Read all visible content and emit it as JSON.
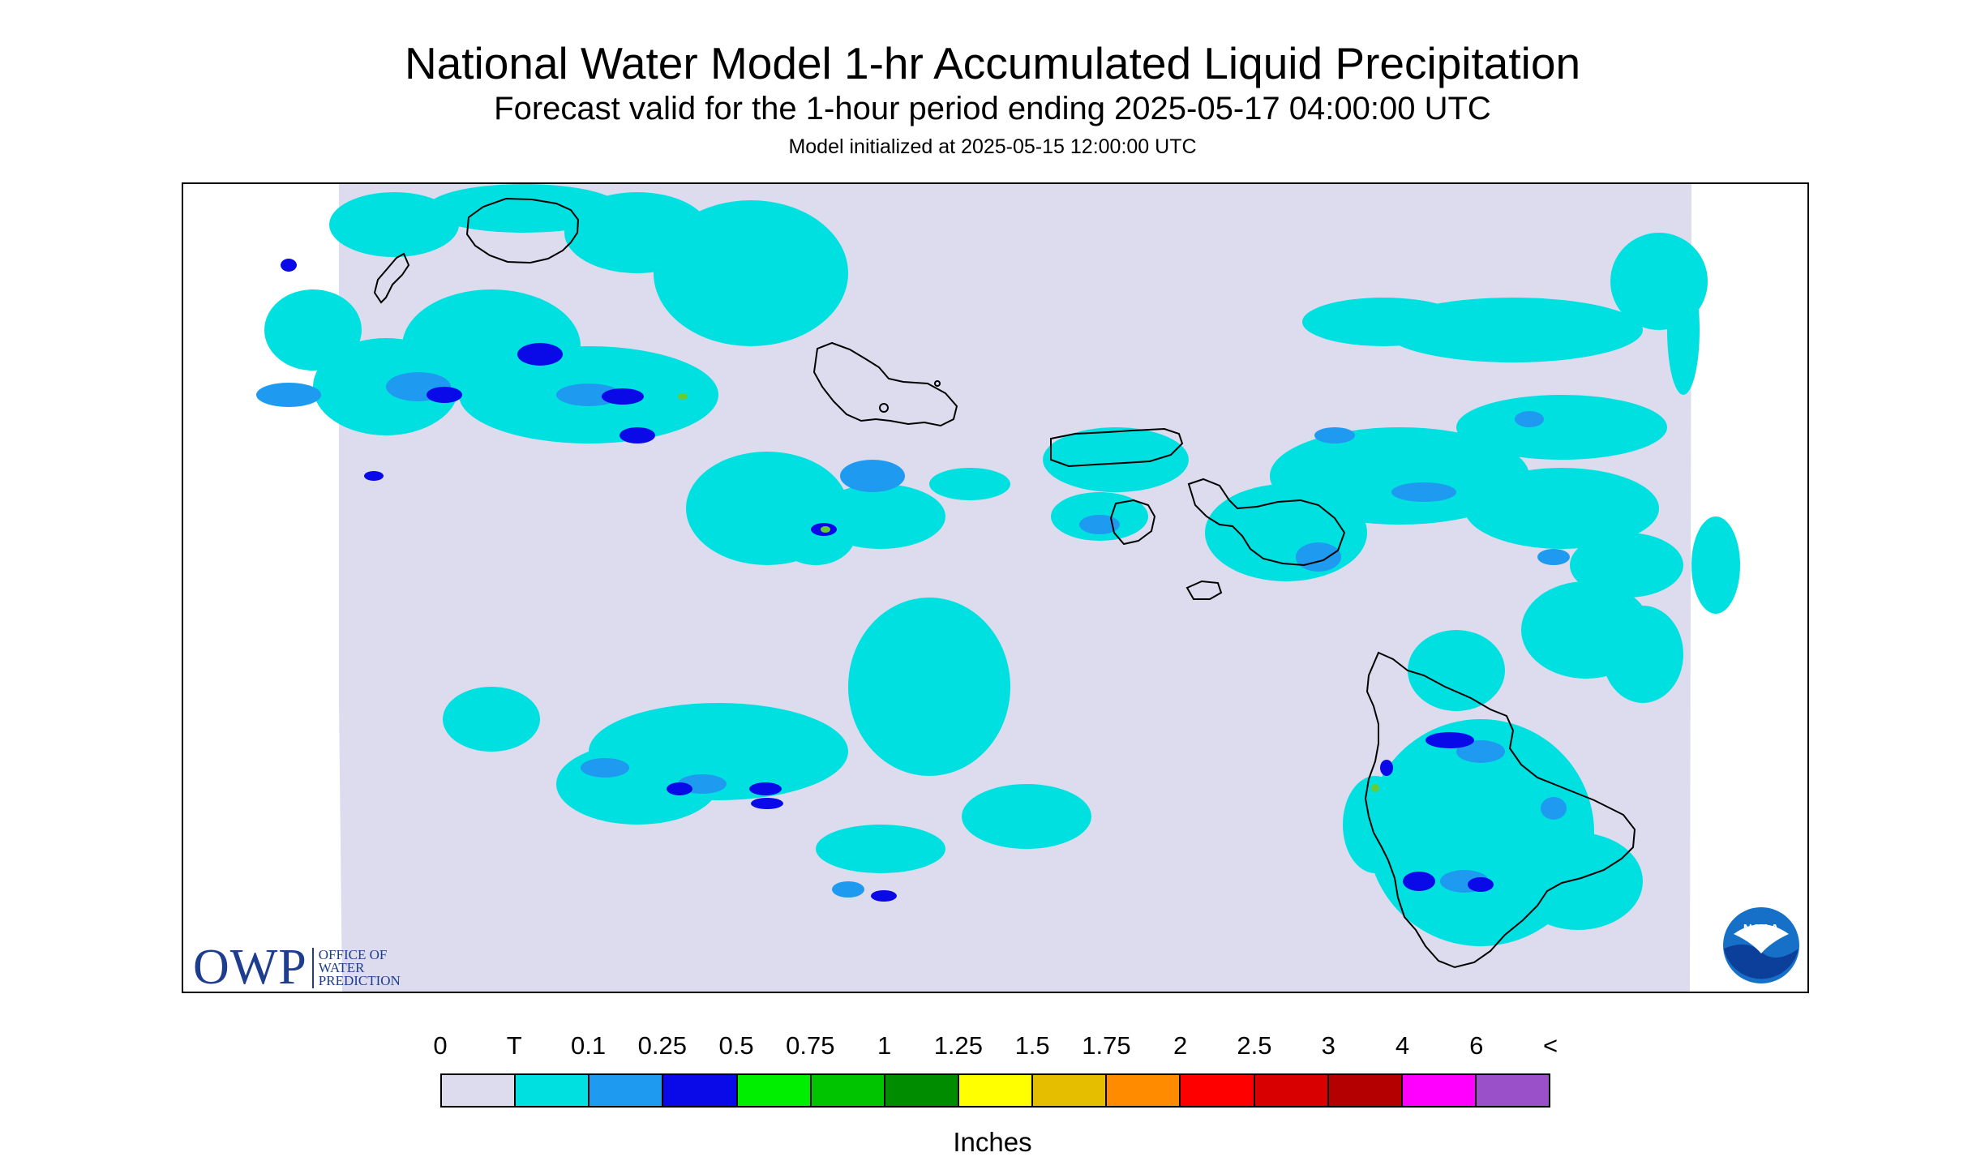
{
  "title": "National Water Model 1-hr Accumulated Liquid Precipitation",
  "subtitle": "Forecast valid for the 1-hour period ending 2025-05-17 04:00:00 UTC",
  "init_line": "Model initialized at 2025-05-15 12:00:00 UTC",
  "owp_logo": {
    "mark": "OWP",
    "line1": "OFFICE OF",
    "line2": "WATER",
    "line3": "PREDICTION",
    "color": "#1f3d8f"
  },
  "noaa_logo": {
    "text": "NOAA",
    "icon": "noaa-seal-icon"
  },
  "legend": {
    "labels": [
      "0",
      "T",
      "0.1",
      "0.25",
      "0.5",
      "0.75",
      "1",
      "1.25",
      "1.5",
      "1.75",
      "2",
      "2.5",
      "3",
      "4",
      "6",
      "<"
    ],
    "colors": [
      "#dcdcee",
      "#00e0e0",
      "#1e9bf0",
      "#0a0ae8",
      "#00ee00",
      "#00c400",
      "#008c00",
      "#ffff00",
      "#e6be00",
      "#ff8c00",
      "#ff0000",
      "#d80000",
      "#b40000",
      "#ff00ff",
      "#9a50c8"
    ],
    "units": "Inches"
  },
  "map_colors": {
    "background": "#dcdcee",
    "trace": "#00e0e0",
    "light": "#1e9bf0",
    "moderate": "#0a0ae8",
    "heavy": "#66cc33",
    "coast": "#000000"
  }
}
